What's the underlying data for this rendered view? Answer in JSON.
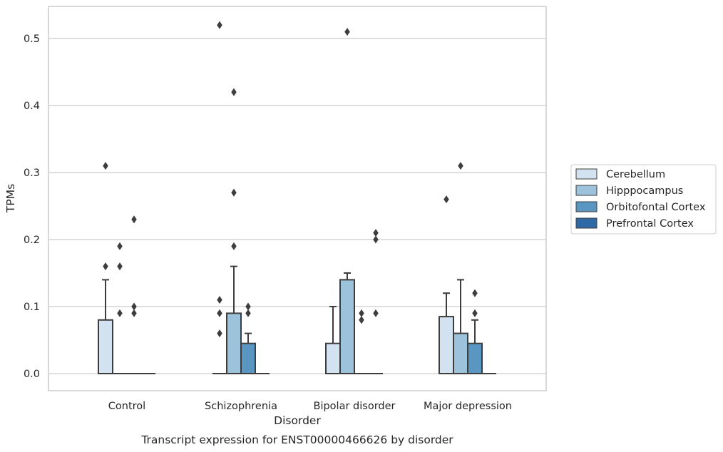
{
  "chart_data": {
    "type": "boxplot",
    "title": "Transcript expression for ENST00000466626 by disorder",
    "xlabel": "Disorder",
    "ylabel": "TPMs",
    "ylim": [
      -0.026,
      0.547
    ],
    "yticks": [
      0.0,
      0.1,
      0.2,
      0.3,
      0.4,
      0.5
    ],
    "ytick_labels": [
      "0.0",
      "0.1",
      "0.2",
      "0.3",
      "0.4",
      "0.5"
    ],
    "grid": "horizontal",
    "legend_position": "right",
    "categories": [
      "Control",
      "Schizophrenia",
      "Bipolar disorder",
      "Major depression"
    ],
    "series": [
      {
        "name": "Cerebellum",
        "color": "#d3e2f0",
        "boxes": [
          {
            "q1": 0.0,
            "median": 0.0,
            "q3": 0.08,
            "whisker_low": 0.0,
            "whisker_high": 0.14,
            "outliers": [
              0.16,
              0.31
            ]
          },
          {
            "q1": 0.0,
            "median": 0.0,
            "q3": 0.0,
            "whisker_low": 0.0,
            "whisker_high": 0.0,
            "outliers": [
              0.06,
              0.09,
              0.11,
              0.52
            ]
          },
          {
            "q1": 0.0,
            "median": 0.0,
            "q3": 0.045,
            "whisker_low": 0.0,
            "whisker_high": 0.1,
            "outliers": []
          },
          {
            "q1": 0.0,
            "median": 0.0,
            "q3": 0.085,
            "whisker_low": 0.0,
            "whisker_high": 0.12,
            "outliers": [
              0.26
            ]
          }
        ]
      },
      {
        "name": "Hipppocampus",
        "color": "#9cc3db",
        "boxes": [
          {
            "q1": 0.0,
            "median": 0.0,
            "q3": 0.0,
            "whisker_low": 0.0,
            "whisker_high": 0.0,
            "outliers": [
              0.09,
              0.16,
              0.19
            ]
          },
          {
            "q1": 0.0,
            "median": 0.0,
            "q3": 0.09,
            "whisker_low": 0.0,
            "whisker_high": 0.16,
            "outliers": [
              0.19,
              0.27,
              0.42
            ]
          },
          {
            "q1": 0.0,
            "median": 0.0,
            "q3": 0.14,
            "whisker_low": 0.0,
            "whisker_high": 0.15,
            "outliers": [
              0.51
            ]
          },
          {
            "q1": 0.0,
            "median": 0.0,
            "q3": 0.06,
            "whisker_low": 0.0,
            "whisker_high": 0.14,
            "outliers": [
              0.31
            ]
          }
        ]
      },
      {
        "name": "Orbitofontal Cortex",
        "color": "#5a96c2",
        "boxes": [
          {
            "q1": 0.0,
            "median": 0.0,
            "q3": 0.0,
            "whisker_low": 0.0,
            "whisker_high": 0.0,
            "outliers": [
              0.09,
              0.1,
              0.23
            ]
          },
          {
            "q1": 0.0,
            "median": 0.0,
            "q3": 0.045,
            "whisker_low": 0.0,
            "whisker_high": 0.06,
            "outliers": [
              0.09,
              0.1
            ]
          },
          {
            "q1": 0.0,
            "median": 0.0,
            "q3": 0.0,
            "whisker_low": 0.0,
            "whisker_high": 0.0,
            "outliers": [
              0.08,
              0.09
            ]
          },
          {
            "q1": 0.0,
            "median": 0.0,
            "q3": 0.045,
            "whisker_low": 0.0,
            "whisker_high": 0.08,
            "outliers": [
              0.09,
              0.12
            ]
          }
        ]
      },
      {
        "name": "Prefrontal Cortex",
        "color": "#2e6aa6",
        "boxes": [
          {
            "q1": 0.0,
            "median": 0.0,
            "q3": 0.0,
            "whisker_low": 0.0,
            "whisker_high": 0.0,
            "outliers": []
          },
          {
            "q1": 0.0,
            "median": 0.0,
            "q3": 0.0,
            "whisker_low": 0.0,
            "whisker_high": 0.0,
            "outliers": []
          },
          {
            "q1": 0.0,
            "median": 0.0,
            "q3": 0.0,
            "whisker_low": 0.0,
            "whisker_high": 0.0,
            "outliers": [
              0.09,
              0.2,
              0.21
            ]
          },
          {
            "q1": 0.0,
            "median": 0.0,
            "q3": 0.0,
            "whisker_low": 0.0,
            "whisker_high": 0.0,
            "outliers": []
          }
        ]
      }
    ]
  },
  "colors": {
    "grid": "#cccccc",
    "frame": "#cccccc",
    "box_edge": "#3d3d3d",
    "outlier": "#3d3d3d"
  }
}
